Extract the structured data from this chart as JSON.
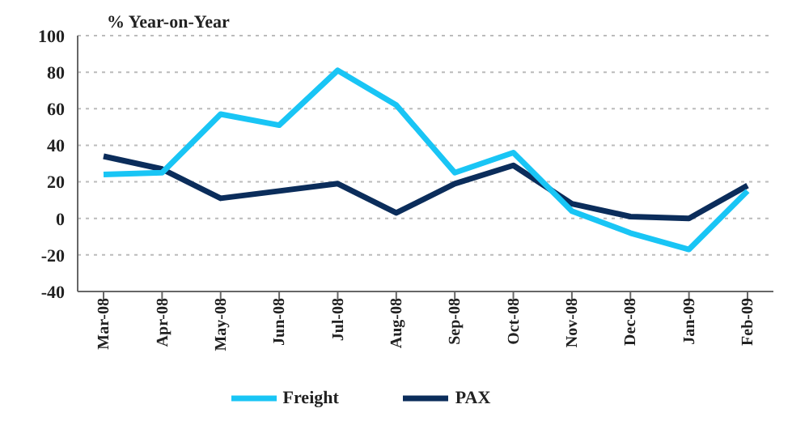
{
  "chart_data": {
    "type": "line",
    "ylabel": "% Year-on-Year",
    "categories": [
      "Mar-08",
      "Apr-08",
      "May-08",
      "Jun-08",
      "Jul-08",
      "Aug-08",
      "Sep-08",
      "Oct-08",
      "Nov-08",
      "Dec-08",
      "Jan-09",
      "Feb-09"
    ],
    "series": [
      {
        "name": "PAX",
        "color": "#0b2d5b",
        "values": [
          34,
          27,
          11,
          15,
          19,
          3,
          19,
          29,
          8,
          1,
          0,
          18
        ]
      },
      {
        "name": "Freight",
        "color": "#19c5f5",
        "values": [
          24,
          25,
          57,
          51,
          81,
          62,
          25,
          36,
          4,
          -8,
          -17,
          15
        ]
      }
    ],
    "ylim": [
      -40,
      100
    ],
    "yticks": [
      -40,
      -20,
      0,
      20,
      40,
      60,
      80,
      100
    ],
    "grid": "y",
    "legend": "bottom",
    "marker": "none",
    "line_style": "solid"
  }
}
